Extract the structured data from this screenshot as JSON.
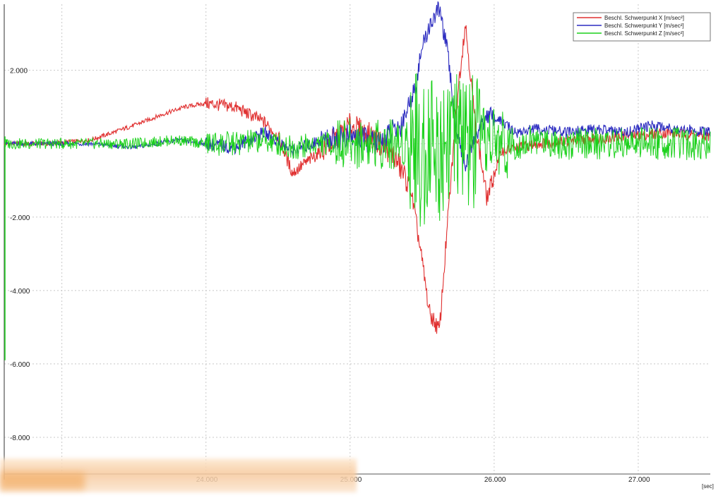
{
  "chart_data": {
    "type": "line",
    "x_unit_label": "[sec]",
    "xlim": [
      22.6,
      27.5
    ],
    "ylim": [
      -9.0,
      3.8
    ],
    "x_ticks": [
      {
        "value": 23.0,
        "label": ""
      },
      {
        "value": 24.0,
        "label": "24.000"
      },
      {
        "value": 25.0,
        "label": "25.000"
      },
      {
        "value": 26.0,
        "label": "26.000"
      },
      {
        "value": 27.0,
        "label": "27.000"
      }
    ],
    "y_ticks": [
      {
        "value": 2,
        "label": "2.000"
      },
      {
        "value": -2,
        "label": "-2.000"
      },
      {
        "value": -4,
        "label": "-4.000"
      },
      {
        "value": -6,
        "label": "-6.000"
      },
      {
        "value": -8,
        "label": "-8.000"
      }
    ],
    "grid": true,
    "legend_position": "top-right",
    "series": [
      {
        "name": "Beschl. Schwerpunkt X [m/sec²]",
        "color": "#e03030",
        "x": [
          22.6,
          22.9,
          23.2,
          23.35,
          23.5,
          23.7,
          23.85,
          24.0,
          24.2,
          24.4,
          24.5,
          24.6,
          24.8,
          25.0,
          25.15,
          25.3,
          25.42,
          25.5,
          25.55,
          25.62,
          25.68,
          25.75,
          25.8,
          25.87,
          25.95,
          26.05,
          26.3,
          26.6,
          26.9,
          27.2,
          27.5
        ],
        "y": [
          0.0,
          0.0,
          0.1,
          0.3,
          0.5,
          0.8,
          1.0,
          1.1,
          1.0,
          0.6,
          0.2,
          -0.8,
          -0.2,
          0.5,
          0.2,
          -0.3,
          -1.2,
          -3.2,
          -4.6,
          -5.1,
          -2.0,
          1.5,
          3.3,
          0.5,
          -1.5,
          -0.2,
          0.0,
          0.1,
          0.2,
          0.3,
          0.2
        ]
      },
      {
        "name": "Beschl. Schwerpunkt Y [m/sec²]",
        "color": "#2c2cc0",
        "x": [
          22.6,
          22.9,
          23.2,
          23.5,
          23.8,
          24.0,
          24.2,
          24.4,
          24.6,
          24.8,
          25.0,
          25.2,
          25.35,
          25.45,
          25.5,
          25.55,
          25.62,
          25.68,
          25.73,
          25.8,
          25.87,
          25.95,
          26.05,
          26.15,
          26.3,
          26.5,
          26.7,
          26.9,
          27.1,
          27.3,
          27.5
        ],
        "y": [
          0.0,
          0.0,
          0.0,
          -0.1,
          0.1,
          0.0,
          -0.1,
          0.3,
          -0.2,
          0.1,
          0.2,
          0.0,
          0.5,
          1.5,
          2.6,
          3.2,
          3.7,
          2.4,
          0.6,
          -0.6,
          0.2,
          0.8,
          0.6,
          0.3,
          0.4,
          0.3,
          0.4,
          0.3,
          0.5,
          0.4,
          0.3
        ]
      },
      {
        "name": "Beschl. Schwerpunkt Z [m/sec²]",
        "color": "#1bd11b",
        "x": [
          22.6,
          22.9,
          23.2,
          23.5,
          23.8,
          24.0,
          24.2,
          24.4,
          24.6,
          24.8,
          25.0,
          25.2,
          25.35,
          25.45,
          25.5,
          25.55,
          25.62,
          25.68,
          25.73,
          25.8,
          25.87,
          25.95,
          26.05,
          26.15,
          26.3,
          26.5,
          26.7,
          26.9,
          27.1,
          27.3,
          27.5
        ],
        "y": [
          0.0,
          0.0,
          0.0,
          0.0,
          0.1,
          0.0,
          0.0,
          0.1,
          -0.1,
          0.0,
          0.0,
          0.0,
          0.0,
          0.2,
          -0.5,
          0.3,
          -0.3,
          0.5,
          0.0,
          0.2,
          -0.2,
          0.1,
          0.0,
          0.0,
          0.1,
          0.0,
          0.0,
          0.0,
          0.0,
          0.0,
          0.0
        ]
      }
    ]
  }
}
